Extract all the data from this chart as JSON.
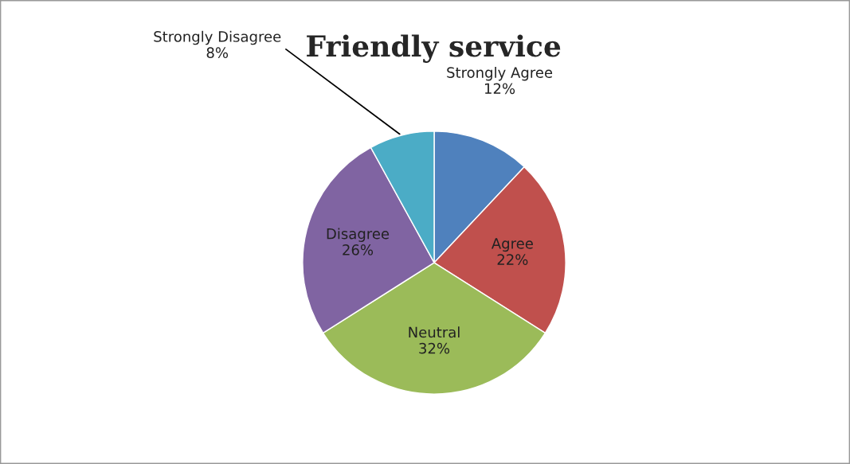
{
  "chart_data": {
    "type": "pie",
    "title": "Friendly service",
    "categories": [
      "Strongly Agree",
      "Agree",
      "Neutral",
      "Disagree",
      "Strongly Disagree"
    ],
    "values": [
      12,
      22,
      32,
      26,
      8
    ],
    "value_labels": [
      "12%",
      "22%",
      "32%",
      "26%",
      "8%"
    ],
    "colors": [
      "#4f81bd",
      "#c0504d",
      "#9bbb59",
      "#8064a2",
      "#4bacc6"
    ],
    "legend": false
  }
}
